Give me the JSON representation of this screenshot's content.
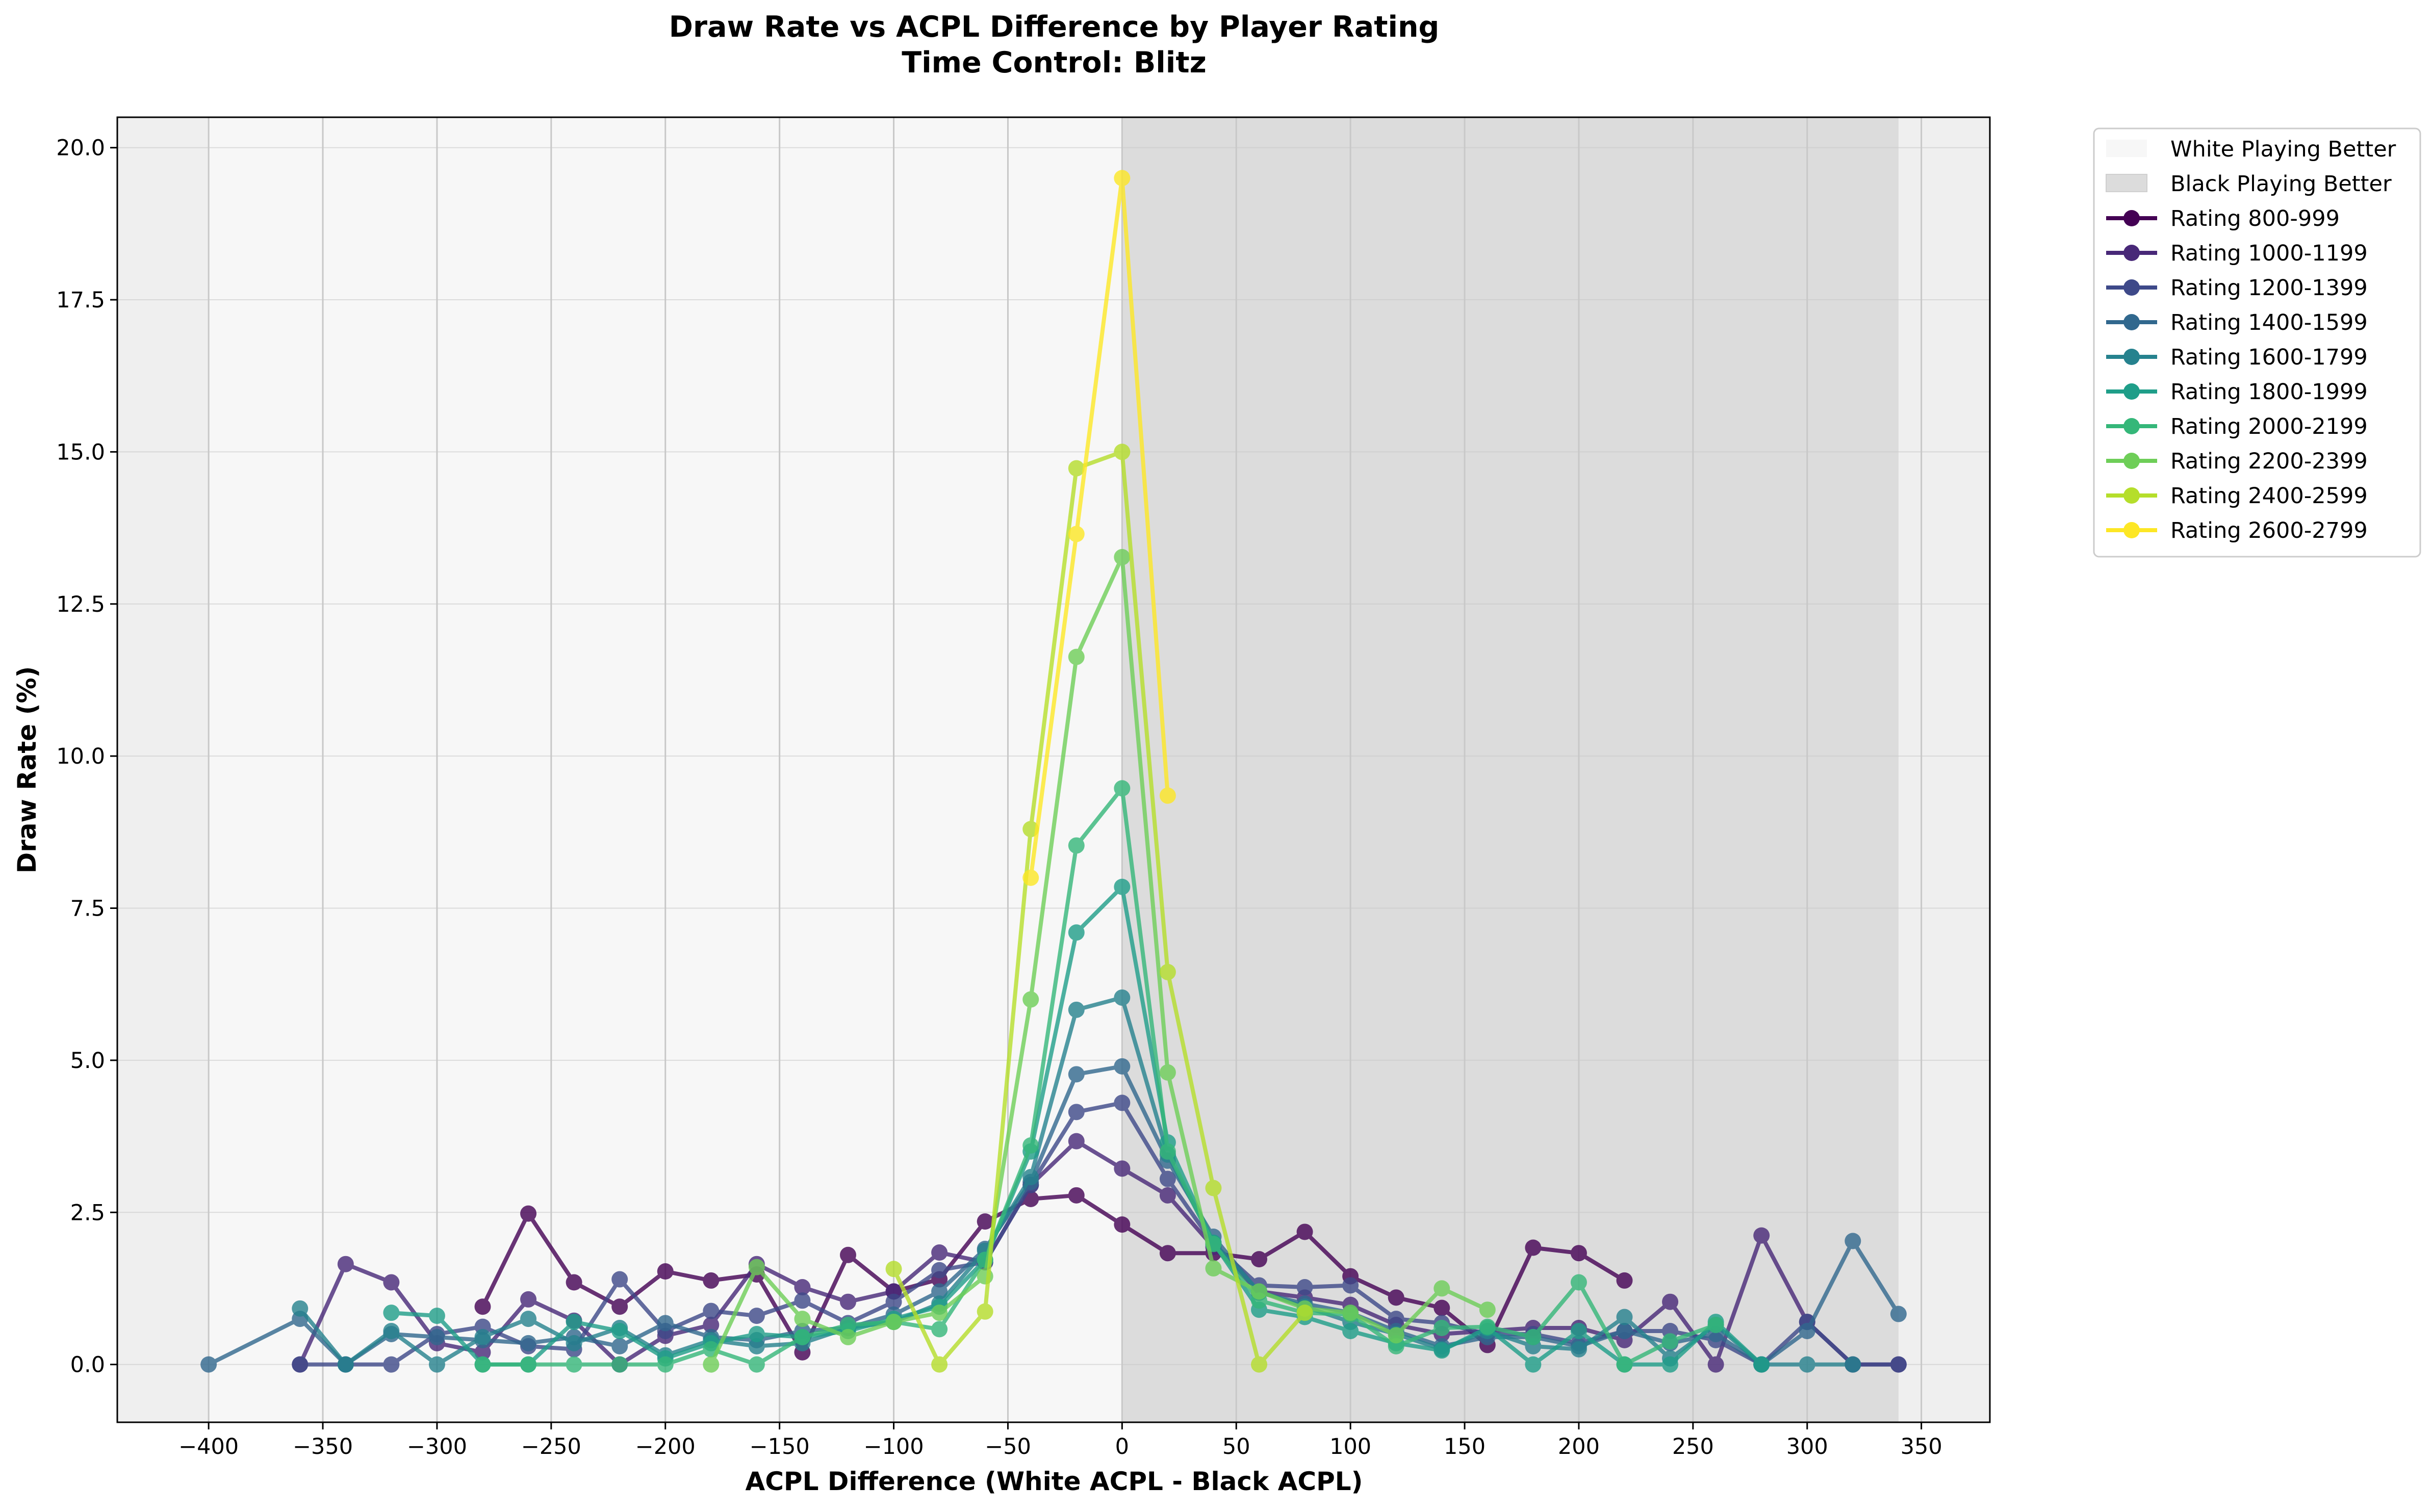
{
  "chart_data": {
    "type": "line",
    "title": "Draw Rate vs ACPL Difference by Player Rating",
    "subtitle": "Time Control: Blitz",
    "xlabel": "ACPL Difference (White ACPL - Black ACPL)",
    "ylabel": "Draw Rate (%)",
    "xlim": [
      -440,
      380
    ],
    "ylim": [
      -0.95,
      20.5
    ],
    "x_ticks": [
      -400,
      -350,
      -300,
      -250,
      -200,
      -150,
      -100,
      -50,
      0,
      50,
      100,
      150,
      200,
      250,
      300,
      350
    ],
    "x_tick_labels": [
      "−400",
      "−350",
      "−300",
      "−250",
      "−200",
      "−150",
      "−100",
      "−50",
      "0",
      "50",
      "100",
      "150",
      "200",
      "250",
      "300",
      "350"
    ],
    "y_ticks": [
      0,
      2.5,
      5,
      7.5,
      10,
      12.5,
      15,
      17.5,
      20
    ],
    "y_tick_labels": [
      "0.0",
      "2.5",
      "5.0",
      "7.5",
      "10.0",
      "12.5",
      "15.0",
      "17.5",
      "20.0"
    ],
    "grid": true,
    "legend_position": "outside-upper-right",
    "regions": [
      {
        "name": "White Playing Better",
        "x_range": [
          -400,
          0
        ],
        "color": "#f7f7f7"
      },
      {
        "name": "Black Playing Better",
        "x_range": [
          0,
          340
        ],
        "color": "#dcdcdc"
      }
    ],
    "series": [
      {
        "name": "Rating 800-999",
        "color": "#440154",
        "points": [
          [
            -280,
            0.95
          ],
          [
            -260,
            2.48
          ],
          [
            -240,
            1.35
          ],
          [
            -220,
            0.95
          ],
          [
            -200,
            1.53
          ],
          [
            -180,
            1.38
          ],
          [
            -160,
            1.48
          ],
          [
            -140,
            0.2
          ],
          [
            -120,
            1.8
          ],
          [
            -100,
            1.2
          ],
          [
            -80,
            1.4
          ],
          [
            -60,
            2.35
          ],
          [
            -40,
            2.72
          ],
          [
            -20,
            2.78
          ],
          [
            0,
            2.3
          ],
          [
            20,
            1.83
          ],
          [
            40,
            1.83
          ],
          [
            60,
            1.73
          ],
          [
            80,
            2.18
          ],
          [
            100,
            1.45
          ],
          [
            120,
            1.1
          ],
          [
            140,
            0.93
          ],
          [
            160,
            0.32
          ],
          [
            180,
            1.92
          ],
          [
            200,
            1.83
          ],
          [
            220,
            1.38
          ]
        ]
      },
      {
        "name": "Rating 1000-1199",
        "color": "#482878",
        "points": [
          [
            -360,
            0.0
          ],
          [
            -340,
            1.65
          ],
          [
            -320,
            1.35
          ],
          [
            -300,
            0.35
          ],
          [
            -280,
            0.2
          ],
          [
            -260,
            1.07
          ],
          [
            -240,
            0.72
          ],
          [
            -220,
            0.0
          ],
          [
            -200,
            0.47
          ],
          [
            -180,
            0.65
          ],
          [
            -160,
            1.65
          ],
          [
            -140,
            1.27
          ],
          [
            -120,
            1.03
          ],
          [
            -100,
            1.2
          ],
          [
            -80,
            1.84
          ],
          [
            -60,
            1.68
          ],
          [
            -40,
            2.95
          ],
          [
            -20,
            3.67
          ],
          [
            0,
            3.22
          ],
          [
            20,
            2.78
          ],
          [
            40,
            1.93
          ],
          [
            60,
            1.2
          ],
          [
            80,
            1.1
          ],
          [
            100,
            0.98
          ],
          [
            120,
            0.65
          ],
          [
            140,
            0.5
          ],
          [
            160,
            0.55
          ],
          [
            180,
            0.6
          ],
          [
            200,
            0.6
          ],
          [
            220,
            0.4
          ],
          [
            240,
            1.03
          ],
          [
            260,
            0.0
          ],
          [
            280,
            2.12
          ],
          [
            300,
            0.7
          ],
          [
            320,
            0.0
          ],
          [
            340,
            0.0
          ]
        ]
      },
      {
        "name": "Rating 1200-1399",
        "color": "#3e4989",
        "points": [
          [
            -360,
            0.0
          ],
          [
            -340,
            0.0
          ],
          [
            -320,
            0.0
          ],
          [
            -300,
            0.5
          ],
          [
            -280,
            0.62
          ],
          [
            -260,
            0.3
          ],
          [
            -240,
            0.25
          ],
          [
            -220,
            1.4
          ],
          [
            -200,
            0.55
          ],
          [
            -180,
            0.88
          ],
          [
            -160,
            0.8
          ],
          [
            -140,
            1.05
          ],
          [
            -120,
            0.68
          ],
          [
            -100,
            1.03
          ],
          [
            -80,
            1.55
          ],
          [
            -60,
            1.68
          ],
          [
            -40,
            2.95
          ],
          [
            -20,
            4.15
          ],
          [
            0,
            4.3
          ],
          [
            20,
            3.05
          ],
          [
            40,
            1.98
          ],
          [
            60,
            1.3
          ],
          [
            80,
            1.27
          ],
          [
            100,
            1.3
          ],
          [
            120,
            0.75
          ],
          [
            140,
            0.68
          ],
          [
            160,
            0.5
          ],
          [
            180,
            0.5
          ],
          [
            200,
            0.35
          ],
          [
            220,
            0.55
          ],
          [
            240,
            0.55
          ],
          [
            260,
            0.4
          ],
          [
            280,
            0.0
          ],
          [
            300,
            0.7
          ],
          [
            320,
            0.0
          ],
          [
            340,
            0.0
          ]
        ]
      },
      {
        "name": "Rating 1400-1599",
        "color": "#31688e",
        "points": [
          [
            -400,
            0.0
          ],
          [
            -360,
            0.75
          ],
          [
            -340,
            0.0
          ],
          [
            -320,
            0.5
          ],
          [
            -300,
            0.45
          ],
          [
            -280,
            0.4
          ],
          [
            -260,
            0.35
          ],
          [
            -240,
            0.45
          ],
          [
            -220,
            0.3
          ],
          [
            -200,
            0.68
          ],
          [
            -180,
            0.45
          ],
          [
            -160,
            0.4
          ],
          [
            -140,
            0.55
          ],
          [
            -120,
            0.6
          ],
          [
            -100,
            0.82
          ],
          [
            -80,
            1.2
          ],
          [
            -60,
            1.9
          ],
          [
            -40,
            3.0
          ],
          [
            -20,
            4.77
          ],
          [
            0,
            4.9
          ],
          [
            20,
            3.35
          ],
          [
            40,
            2.1
          ],
          [
            60,
            1.18
          ],
          [
            80,
            1.0
          ],
          [
            100,
            0.85
          ],
          [
            120,
            0.55
          ],
          [
            140,
            0.3
          ],
          [
            160,
            0.45
          ],
          [
            180,
            0.45
          ],
          [
            200,
            0.3
          ],
          [
            220,
            0.55
          ],
          [
            240,
            0.35
          ],
          [
            260,
            0.5
          ],
          [
            280,
            0.0
          ],
          [
            300,
            0.55
          ],
          [
            320,
            2.03
          ],
          [
            340,
            0.83
          ]
        ]
      },
      {
        "name": "Rating 1600-1799",
        "color": "#26828e",
        "points": [
          [
            -360,
            0.92
          ],
          [
            -340,
            0.0
          ],
          [
            -320,
            0.55
          ],
          [
            -300,
            0.0
          ],
          [
            -280,
            0.45
          ],
          [
            -260,
            0.75
          ],
          [
            -240,
            0.35
          ],
          [
            -220,
            0.6
          ],
          [
            -200,
            0.15
          ],
          [
            -180,
            0.4
          ],
          [
            -160,
            0.3
          ],
          [
            -140,
            0.35
          ],
          [
            -120,
            0.6
          ],
          [
            -100,
            0.7
          ],
          [
            -80,
            1.0
          ],
          [
            -60,
            1.87
          ],
          [
            -40,
            3.08
          ],
          [
            -20,
            5.83
          ],
          [
            0,
            6.03
          ],
          [
            20,
            3.45
          ],
          [
            40,
            2.0
          ],
          [
            60,
            1.2
          ],
          [
            80,
            0.95
          ],
          [
            100,
            0.7
          ],
          [
            120,
            0.5
          ],
          [
            140,
            0.25
          ],
          [
            160,
            0.55
          ],
          [
            180,
            0.3
          ],
          [
            200,
            0.25
          ],
          [
            220,
            0.78
          ],
          [
            240,
            0.1
          ],
          [
            260,
            0.65
          ],
          [
            280,
            0.0
          ],
          [
            300,
            0.0
          ],
          [
            320,
            0.0
          ]
        ]
      },
      {
        "name": "Rating 1800-1999",
        "color": "#1f9e89",
        "points": [
          [
            -320,
            0.85
          ],
          [
            -300,
            0.8
          ],
          [
            -280,
            0.0
          ],
          [
            -260,
            0.0
          ],
          [
            -240,
            0.7
          ],
          [
            -220,
            0.55
          ],
          [
            -200,
            0.1
          ],
          [
            -180,
            0.35
          ],
          [
            -160,
            0.5
          ],
          [
            -140,
            0.45
          ],
          [
            -120,
            0.55
          ],
          [
            -100,
            0.75
          ],
          [
            -80,
            0.95
          ],
          [
            -60,
            1.72
          ],
          [
            -40,
            3.5
          ],
          [
            -20,
            7.1
          ],
          [
            0,
            7.85
          ],
          [
            20,
            3.65
          ],
          [
            40,
            2.0
          ],
          [
            60,
            0.9
          ],
          [
            80,
            0.78
          ],
          [
            100,
            0.55
          ],
          [
            120,
            0.35
          ],
          [
            140,
            0.23
          ],
          [
            160,
            0.6
          ],
          [
            180,
            0.0
          ],
          [
            200,
            0.55
          ],
          [
            220,
            0.0
          ],
          [
            240,
            0.0
          ],
          [
            260,
            0.7
          ],
          [
            280,
            0.0
          ]
        ]
      },
      {
        "name": "Rating 2000-2199",
        "color": "#35b779",
        "points": [
          [
            -280,
            0.0
          ],
          [
            -260,
            0.0
          ],
          [
            -240,
            0.0
          ],
          [
            -220,
            0.0
          ],
          [
            -200,
            0.0
          ],
          [
            -180,
            0.25
          ],
          [
            -160,
            0.0
          ],
          [
            -140,
            0.45
          ],
          [
            -120,
            0.65
          ],
          [
            -100,
            0.7
          ],
          [
            -80,
            0.58
          ],
          [
            -60,
            1.72
          ],
          [
            -40,
            3.6
          ],
          [
            -20,
            8.53
          ],
          [
            0,
            9.47
          ],
          [
            20,
            3.5
          ],
          [
            40,
            1.98
          ],
          [
            60,
            1.05
          ],
          [
            80,
            0.85
          ],
          [
            100,
            0.82
          ],
          [
            120,
            0.3
          ],
          [
            140,
            0.6
          ],
          [
            160,
            0.62
          ],
          [
            180,
            0.45
          ],
          [
            200,
            1.35
          ],
          [
            220,
            0.0
          ],
          [
            240,
            0.38
          ],
          [
            260,
            0.65
          ]
        ]
      },
      {
        "name": "Rating 2200-2399",
        "color": "#6ece58",
        "points": [
          [
            -180,
            0.0
          ],
          [
            -160,
            1.6
          ],
          [
            -140,
            0.75
          ],
          [
            -120,
            0.45
          ],
          [
            -100,
            0.7
          ],
          [
            -80,
            0.85
          ],
          [
            -60,
            1.45
          ],
          [
            -40,
            6.0
          ],
          [
            -20,
            11.63
          ],
          [
            0,
            13.27
          ],
          [
            20,
            4.8
          ],
          [
            40,
            1.58
          ],
          [
            60,
            1.2
          ],
          [
            80,
            0.92
          ],
          [
            100,
            0.85
          ],
          [
            120,
            0.48
          ],
          [
            140,
            1.25
          ],
          [
            160,
            0.9
          ]
        ]
      },
      {
        "name": "Rating 2400-2599",
        "color": "#b5de2b",
        "points": [
          [
            -100,
            1.57
          ],
          [
            -80,
            0.0
          ],
          [
            -60,
            0.87
          ],
          [
            -40,
            8.8
          ],
          [
            -20,
            14.73
          ],
          [
            0,
            15.0
          ],
          [
            20,
            6.45
          ],
          [
            40,
            2.9
          ],
          [
            60,
            0.0
          ],
          [
            80,
            0.85
          ]
        ]
      },
      {
        "name": "Rating 2600-2799",
        "color": "#fde725",
        "points": [
          [
            -40,
            8.0
          ],
          [
            -20,
            13.65
          ],
          [
            0,
            19.5
          ],
          [
            20,
            9.35
          ]
        ]
      }
    ]
  }
}
